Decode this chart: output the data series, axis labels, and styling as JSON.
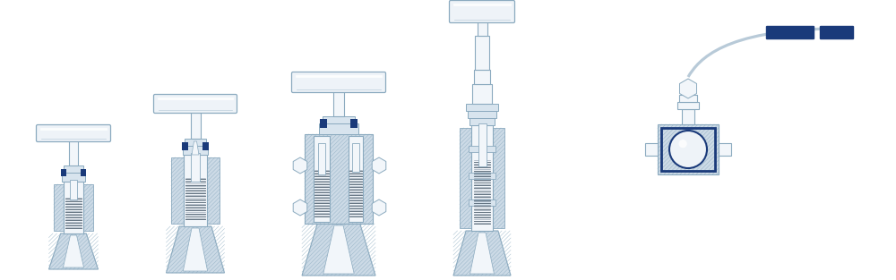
{
  "bg_color": "#ffffff",
  "lc": "#8baabf",
  "lc_dark": "#5878a0",
  "hf": "#ccdae6",
  "wf": "#f2f6fa",
  "hb": "#1a3a7a",
  "sf": "#d8e4ee",
  "thread_dark": "#5a6a78",
  "thread_light": "#8898a8",
  "fig_width": 10.0,
  "fig_height": 3.13,
  "dpi": 100
}
